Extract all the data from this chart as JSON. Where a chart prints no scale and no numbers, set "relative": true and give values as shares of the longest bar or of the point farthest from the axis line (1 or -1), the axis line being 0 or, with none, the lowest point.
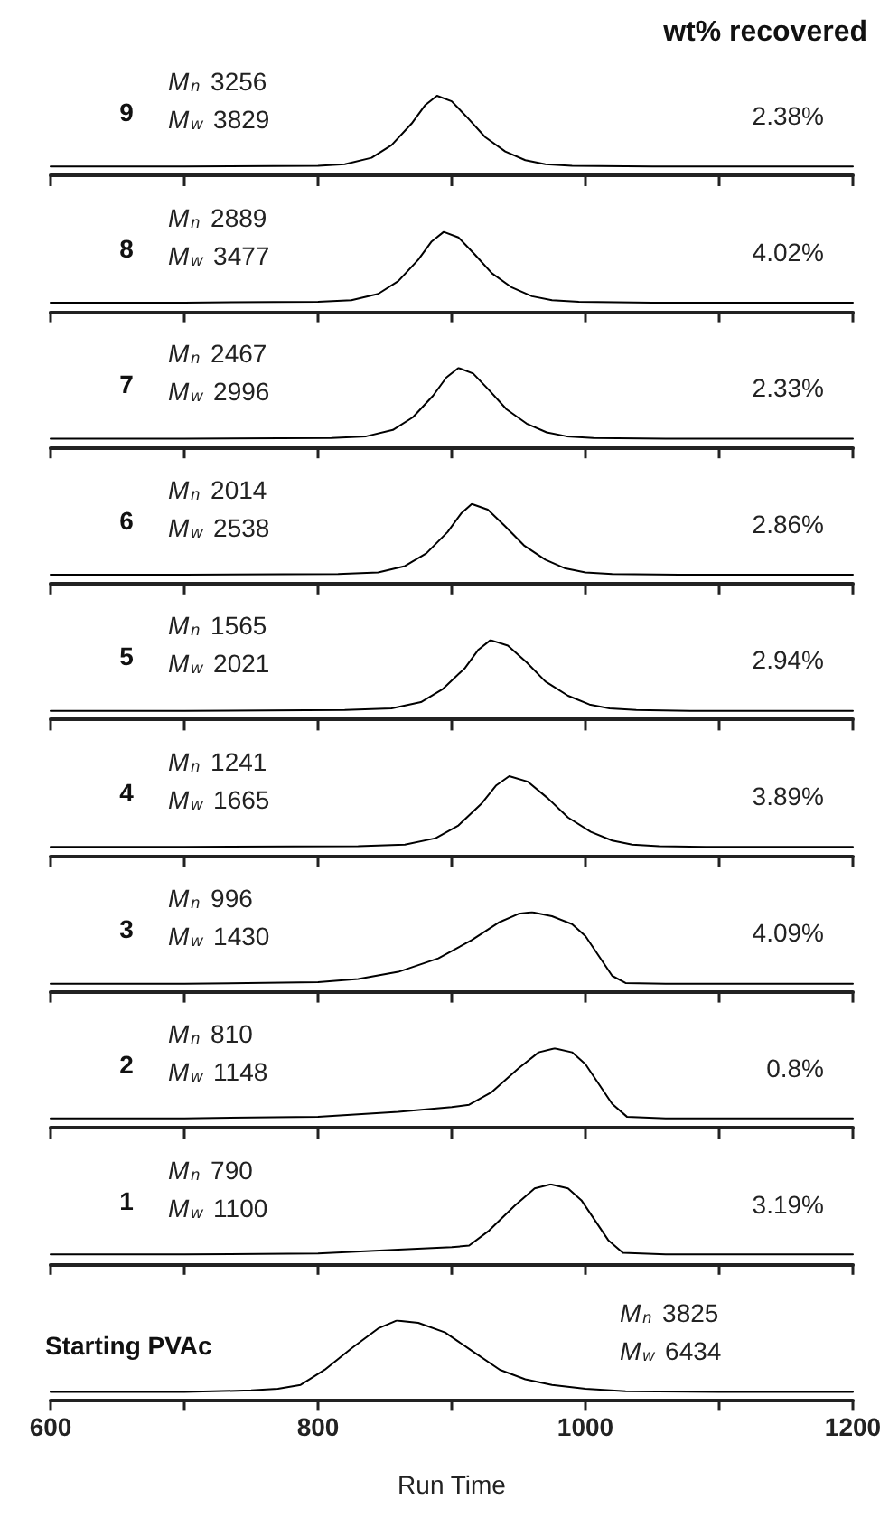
{
  "chart_data": [
    {
      "type": "line",
      "title": "9",
      "annotations": [
        "M$_{n}$ 3256",
        "M$_{w}$ 3829",
        "2.38%",
        "wt% recovered"
      ],
      "relative": true,
      "xlim": [
        600,
        1200
      ],
      "xticks": [
        600,
        {
          "value": 700,
          "label": null
        },
        800,
        {
          "value": 900,
          "label": null
        },
        1000,
        {
          "value": 1100,
          "label": null
        },
        1200
      ],
      "tick_labels": false,
      "grid": false,
      "marker": "none",
      "line_style": "solid",
      "series": [
        {
          "color": "#000000",
          "x": [
            600,
            700,
            800,
            820,
            840,
            855,
            870,
            880,
            889,
            900,
            912,
            925,
            940,
            955,
            970,
            990,
            1050,
            1200
          ],
          "values": [
            0.11,
            0.11,
            0.12,
            0.14,
            0.22,
            0.38,
            0.65,
            0.88,
            1,
            0.93,
            0.72,
            0.48,
            0.3,
            0.19,
            0.14,
            0.12,
            0.11,
            0.11
          ]
        }
      ]
    },
    {
      "type": "line",
      "title": "8",
      "annotations": [
        "M$_{n}$ 2889",
        "M$_{w}$ 3477",
        "4.02%"
      ],
      "relative": true,
      "xlim": [
        600,
        1200
      ],
      "xticks": [
        600,
        {
          "value": 700,
          "label": null
        },
        800,
        {
          "value": 900,
          "label": null
        },
        1000,
        {
          "value": 1100,
          "label": null
        },
        1200
      ],
      "tick_labels": false,
      "grid": false,
      "marker": "none",
      "line_style": "solid",
      "series": [
        {
          "color": "#000000",
          "x": [
            600,
            700,
            800,
            825,
            845,
            860,
            875,
            885,
            894,
            905,
            917,
            930,
            945,
            960,
            975,
            995,
            1050,
            1200
          ],
          "values": [
            0.11,
            0.11,
            0.12,
            0.14,
            0.22,
            0.38,
            0.65,
            0.88,
            1,
            0.93,
            0.72,
            0.48,
            0.3,
            0.19,
            0.14,
            0.12,
            0.11,
            0.11
          ]
        }
      ]
    },
    {
      "type": "line",
      "title": "7",
      "annotations": [
        "M$_{n}$ 2467",
        "M$_{w}$ 2996",
        "2.33%"
      ],
      "relative": true,
      "xlim": [
        600,
        1200
      ],
      "xticks": [
        600,
        {
          "value": 700,
          "label": null
        },
        800,
        {
          "value": 900,
          "label": null
        },
        1000,
        {
          "value": 1100,
          "label": null
        },
        1200
      ],
      "tick_labels": false,
      "grid": false,
      "marker": "none",
      "line_style": "solid",
      "series": [
        {
          "color": "#000000",
          "x": [
            600,
            700,
            810,
            836,
            856,
            871,
            886,
            896,
            905,
            916,
            928,
            941,
            956,
            971,
            986,
            1006,
            1060,
            1200
          ],
          "values": [
            0.11,
            0.11,
            0.12,
            0.14,
            0.22,
            0.38,
            0.65,
            0.88,
            1,
            0.93,
            0.72,
            0.48,
            0.3,
            0.19,
            0.14,
            0.12,
            0.11,
            0.11
          ]
        }
      ]
    },
    {
      "type": "line",
      "title": "6",
      "annotations": [
        "M$_{n}$ 2014",
        "M$_{w}$ 2538",
        "2.86%"
      ],
      "relative": true,
      "xlim": [
        600,
        1200
      ],
      "xticks": [
        600,
        {
          "value": 700,
          "label": null
        },
        800,
        {
          "value": 900,
          "label": null
        },
        1000,
        {
          "value": 1100,
          "label": null
        },
        1200
      ],
      "tick_labels": false,
      "grid": false,
      "marker": "none",
      "line_style": "solid",
      "series": [
        {
          "color": "#000000",
          "x": [
            600,
            700,
            815,
            845,
            865,
            881,
            897,
            907,
            915,
            927,
            940,
            954,
            970,
            985,
            1000,
            1020,
            1070,
            1200
          ],
          "values": [
            0.11,
            0.11,
            0.12,
            0.14,
            0.22,
            0.38,
            0.65,
            0.88,
            1,
            0.93,
            0.72,
            0.48,
            0.3,
            0.19,
            0.14,
            0.12,
            0.11,
            0.11
          ]
        }
      ]
    },
    {
      "type": "line",
      "title": "5",
      "annotations": [
        "M$_{n}$ 1565",
        "M$_{w}$ 2021",
        "2.94%"
      ],
      "relative": true,
      "xlim": [
        600,
        1200
      ],
      "xticks": [
        600,
        {
          "value": 700,
          "label": null
        },
        800,
        {
          "value": 900,
          "label": null
        },
        1000,
        {
          "value": 1100,
          "label": null
        },
        1200
      ],
      "tick_labels": false,
      "grid": false,
      "marker": "none",
      "line_style": "solid",
      "series": [
        {
          "color": "#000000",
          "x": [
            600,
            700,
            820,
            855,
            877,
            893,
            910,
            920,
            929,
            942,
            956,
            970,
            987,
            1003,
            1018,
            1038,
            1080,
            1200
          ],
          "values": [
            0.11,
            0.11,
            0.12,
            0.14,
            0.22,
            0.38,
            0.65,
            0.88,
            1,
            0.93,
            0.72,
            0.48,
            0.3,
            0.19,
            0.14,
            0.12,
            0.11,
            0.11
          ]
        }
      ]
    },
    {
      "type": "line",
      "title": "4",
      "annotations": [
        "M$_{n}$ 1241",
        "M$_{w}$ 1665",
        "3.89%"
      ],
      "relative": true,
      "xlim": [
        600,
        1200
      ],
      "xticks": [
        600,
        {
          "value": 700,
          "label": null
        },
        800,
        {
          "value": 900,
          "label": null
        },
        1000,
        {
          "value": 1100,
          "label": null
        },
        1200
      ],
      "tick_labels": false,
      "grid": false,
      "marker": "none",
      "line_style": "solid",
      "series": [
        {
          "color": "#000000",
          "x": [
            600,
            700,
            830,
            865,
            888,
            905,
            922,
            933,
            943,
            957,
            972,
            987,
            1004,
            1020,
            1035,
            1055,
            1090,
            1200
          ],
          "values": [
            0.11,
            0.11,
            0.12,
            0.14,
            0.22,
            0.38,
            0.65,
            0.88,
            1,
            0.93,
            0.72,
            0.48,
            0.3,
            0.19,
            0.14,
            0.12,
            0.11,
            0.11
          ]
        }
      ]
    },
    {
      "type": "line",
      "title": "3",
      "annotations": [
        "M$_{n}$ 996",
        "M$_{w}$ 1430",
        "4.09%"
      ],
      "relative": true,
      "xlim": [
        600,
        1200
      ],
      "xticks": [
        600,
        {
          "value": 700,
          "label": null
        },
        800,
        {
          "value": 900,
          "label": null
        },
        1000,
        {
          "value": 1100,
          "label": null
        },
        1200
      ],
      "tick_labels": false,
      "grid": false,
      "marker": "none",
      "line_style": "solid",
      "series": [
        {
          "color": "#000000",
          "x": [
            600,
            700,
            800,
            830,
            860,
            890,
            915,
            935,
            950,
            960,
            975,
            990,
            1000,
            1010,
            1020,
            1030,
            1060,
            1200
          ],
          "values": [
            0.1,
            0.1,
            0.12,
            0.16,
            0.25,
            0.42,
            0.65,
            0.87,
            0.98,
            1,
            0.95,
            0.85,
            0.7,
            0.45,
            0.2,
            0.11,
            0.1,
            0.1
          ]
        }
      ]
    },
    {
      "type": "line",
      "title": "2",
      "annotations": [
        "M$_{n}$ 810",
        "M$_{w}$ 1148",
        "0.8%"
      ],
      "relative": true,
      "xlim": [
        600,
        1200
      ],
      "xticks": [
        600,
        {
          "value": 700,
          "label": null
        },
        800,
        {
          "value": 900,
          "label": null
        },
        1000,
        {
          "value": 1100,
          "label": null
        },
        1200
      ],
      "tick_labels": false,
      "grid": false,
      "marker": "none",
      "line_style": "solid",
      "series": [
        {
          "color": "#000000",
          "x": [
            600,
            700,
            800,
            860,
            900,
            913,
            930,
            950,
            965,
            977,
            990,
            1000,
            1010,
            1020,
            1031,
            1060,
            1200
          ],
          "values": [
            0.12,
            0.12,
            0.14,
            0.2,
            0.26,
            0.29,
            0.45,
            0.75,
            0.95,
            1,
            0.95,
            0.8,
            0.55,
            0.3,
            0.14,
            0.12,
            0.12
          ]
        }
      ]
    },
    {
      "type": "line",
      "title": "1",
      "annotations": [
        "M$_{n}$ 790",
        "M$_{w}$ 1100",
        "3.19%"
      ],
      "relative": true,
      "xlim": [
        600,
        1200
      ],
      "xticks": [
        600,
        {
          "value": 700,
          "label": null
        },
        800,
        {
          "value": 900,
          "label": null
        },
        1000,
        {
          "value": 1100,
          "label": null
        },
        1200
      ],
      "tick_labels": false,
      "grid": false,
      "marker": "none",
      "line_style": "solid",
      "series": [
        {
          "color": "#000000",
          "x": [
            600,
            700,
            800,
            860,
            900,
            913,
            928,
            947,
            962,
            974,
            987,
            997,
            1007,
            1017,
            1028,
            1060,
            1200
          ],
          "values": [
            0.12,
            0.12,
            0.13,
            0.18,
            0.21,
            0.23,
            0.42,
            0.73,
            0.95,
            1,
            0.95,
            0.8,
            0.55,
            0.3,
            0.14,
            0.12,
            0.12
          ]
        }
      ]
    },
    {
      "type": "line",
      "title": "Starting PVAc",
      "xlabel": "Run Time",
      "annotations": [
        "M$_{n}$ 3825",
        "M$_{w}$ 6434"
      ],
      "relative": true,
      "xlim": [
        600,
        1200
      ],
      "xticks": [
        600,
        {
          "value": 700,
          "label": null
        },
        800,
        {
          "value": 900,
          "label": null
        },
        1000,
        {
          "value": 1100,
          "label": null
        },
        1200
      ],
      "tick_labels": "x",
      "grid": false,
      "marker": "none",
      "line_style": "solid",
      "series": [
        {
          "color": "#000000",
          "x": [
            600,
            700,
            750,
            770,
            787,
            805,
            825,
            845,
            859,
            875,
            895,
            915,
            936,
            955,
            975,
            1000,
            1030,
            1100,
            1200
          ],
          "values": [
            0.1,
            0.1,
            0.12,
            0.14,
            0.19,
            0.38,
            0.65,
            0.9,
            1,
            0.97,
            0.85,
            0.62,
            0.38,
            0.26,
            0.19,
            0.14,
            0.11,
            0.1,
            0.1
          ]
        }
      ]
    }
  ]
}
